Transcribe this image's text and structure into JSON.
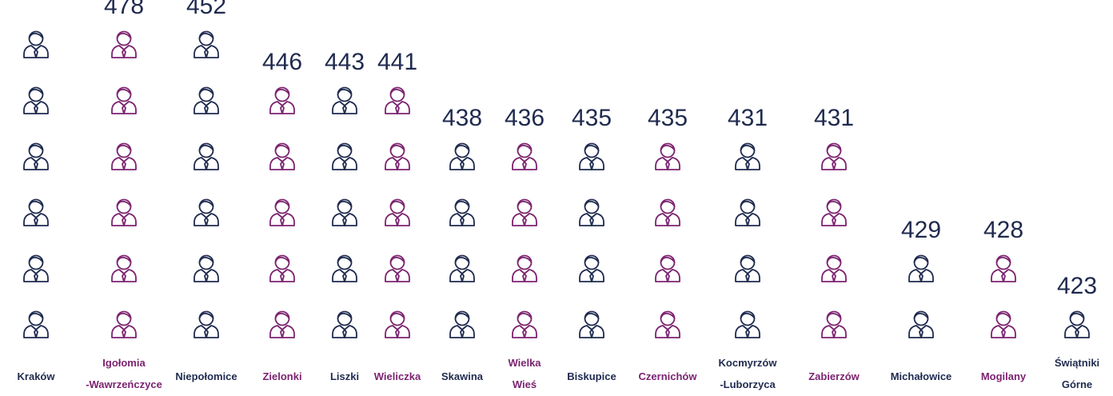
{
  "chart_data": {
    "type": "pictogram",
    "categories": [
      "Kraków",
      "Igołomia\n-Wawrzeńczyce",
      "Niepołomice",
      "Zielonki",
      "Liszki",
      "Wieliczka",
      "Skawina",
      "Wielka\nWieś",
      "Biskupice",
      "Czernichów",
      "Kocmyrzów\n-Luborzyca",
      "Zabierzów",
      "Michałowice",
      "Mogilany",
      "Świątniki\nGórne"
    ],
    "values": [
      null,
      478,
      452,
      446,
      443,
      441,
      438,
      436,
      435,
      435,
      431,
      431,
      429,
      428,
      423
    ],
    "icons": [
      6,
      6,
      6,
      5,
      5,
      5,
      4,
      4,
      4,
      4,
      4,
      4,
      2,
      2,
      1
    ],
    "colors": [
      "#1f2a4f",
      "#7b2370",
      "#1f2a4f",
      "#7b2370",
      "#1f2a4f",
      "#7b2370",
      "#1f2a4f",
      "#7b2370",
      "#1f2a4f",
      "#7b2370",
      "#1f2a4f",
      "#7b2370",
      "#1f2a4f",
      "#7b2370",
      "#1f2a4f"
    ]
  }
}
